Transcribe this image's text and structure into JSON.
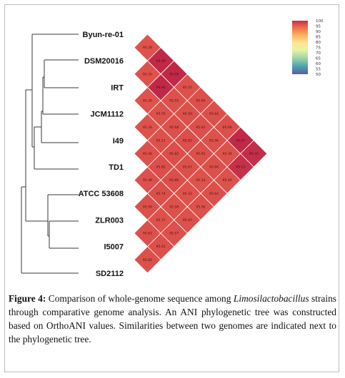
{
  "figure": {
    "label": "Figure 4:",
    "caption_part1": " Comparison of whole-genome sequence among ",
    "caption_genus": "Limosilactobacillus",
    "caption_part2": " strains through comparative genome analysis. An ANI phylogenetic tree was constructed based on OrthoANI values. Similarities between two genomes are indicated next to the phylogenetic tree."
  },
  "chart_data": {
    "type": "heatmap",
    "strains": [
      "Byun-re-01",
      "DSM20016",
      "IRT",
      "JCM1112",
      "I49",
      "TD1",
      "ATCC 53608",
      "ZLR003",
      "I5007",
      "SD2112"
    ],
    "legend": {
      "ticks": [
        100,
        95,
        90,
        85,
        80,
        75,
        70,
        65,
        60,
        55,
        50
      ],
      "range": [
        50,
        100
      ],
      "colors": [
        "#c62f4c",
        "#ee6a49",
        "#fbb562",
        "#fce791",
        "#e7f3a2",
        "#9fd4a5",
        "#4ca5b0",
        "#5d5aa6"
      ]
    },
    "ani_values": [
      [
        "95.28",
        "95.32",
        "95.26",
        "95.34",
        "95.46",
        "95.48",
        "95.59",
        "95.62",
        "95.66"
      ],
      [
        "99.98",
        "99.96",
        "95.55",
        "95.51",
        "95.82",
        "95.74",
        "95.37",
        "95.61"
      ],
      [
        "99.98",
        "95.55",
        "95.68",
        "95.82",
        "95.86",
        "95.56",
        "95.57"
      ],
      [
        "95.55",
        "95.59",
        "95.82",
        "95.67",
        "95.33",
        "95.45"
      ],
      [
        "95.60",
        "95.62",
        "95.65",
        "95.34",
        "95.56"
      ],
      [
        "95.64",
        "95.56",
        "95.60",
        "95.64"
      ],
      [
        "95.69",
        "95.39",
        "95.49"
      ],
      [
        "99.87",
        "99.13"
      ],
      [
        "99.35"
      ]
    ]
  }
}
